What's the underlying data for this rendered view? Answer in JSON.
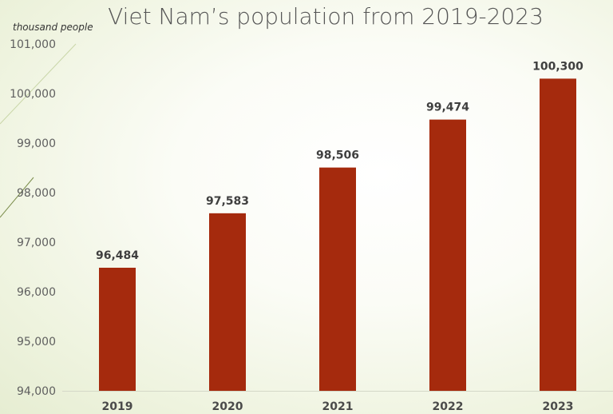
{
  "chart_data": {
    "type": "bar",
    "title": "Viet Nam’s population from 2019-2023",
    "unit_label": "thousand people",
    "categories": [
      "2019",
      "2020",
      "2021",
      "2022",
      "2023"
    ],
    "values": [
      96484,
      97583,
      98506,
      99474,
      100300
    ],
    "data_labels": [
      "96,484",
      "97,583",
      "98,506",
      "99,474",
      "100,300"
    ],
    "y_ticks": [
      94000,
      95000,
      96000,
      97000,
      98000,
      99000,
      100000,
      101000
    ],
    "y_tick_labels": [
      "94,000",
      "95,000",
      "96,000",
      "97,000",
      "98,000",
      "99,000",
      "100,000",
      "101,000"
    ],
    "ylim": [
      94000,
      101000
    ],
    "grid": false,
    "legend": "none",
    "bar_color": "#a52a0d"
  }
}
